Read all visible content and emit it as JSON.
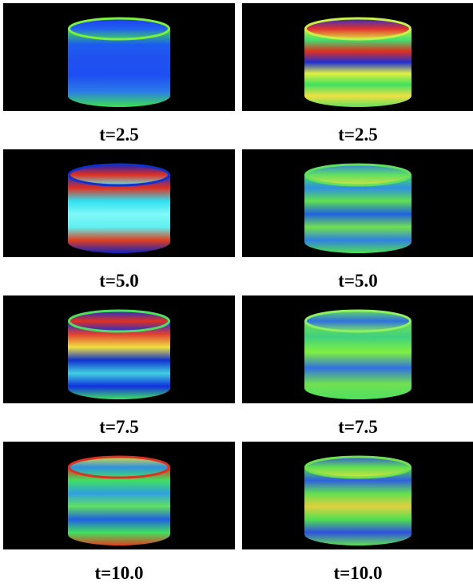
{
  "panels": [
    {
      "caption": "t=2.5"
    },
    {
      "caption": "t=2.5"
    },
    {
      "caption": "t=5.0"
    },
    {
      "caption": "t=5.0"
    },
    {
      "caption": "t=7.5"
    },
    {
      "caption": "t=7.5"
    },
    {
      "caption": "t=10.0"
    },
    {
      "caption": "t=10.0"
    }
  ]
}
